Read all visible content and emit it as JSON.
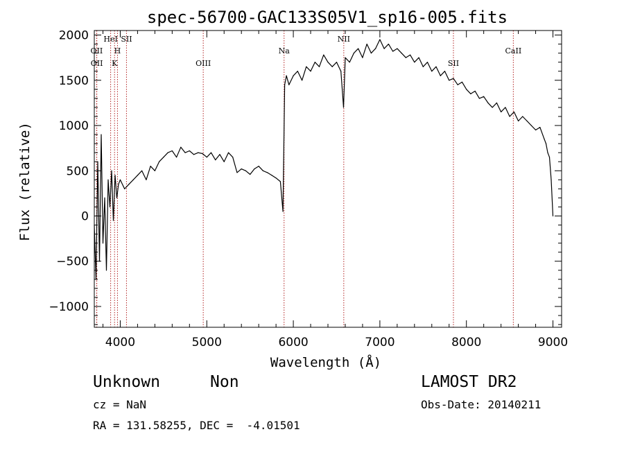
{
  "chart_data": {
    "type": "line",
    "title": "spec-56700-GAC133S05V1_sp16-005.fits",
    "xlabel": "Wavelength (Å)",
    "ylabel": "Flux (relative)",
    "xlim": [
      3700,
      9100
    ],
    "ylim": [
      -1230,
      2050
    ],
    "xticks": [
      4000,
      5000,
      6000,
      7000,
      8000,
      9000
    ],
    "yticks": [
      -1000,
      -500,
      0,
      500,
      1000,
      1500,
      2000
    ],
    "grid": false,
    "line_color": "#000000",
    "marker_color": "#b22222",
    "lines": [
      {
        "label": "OII",
        "wavelength": 3727,
        "row": 0
      },
      {
        "label": "OII",
        "wavelength": 3729,
        "row": 1
      },
      {
        "label": "HeI",
        "wavelength": 3889,
        "row": -1
      },
      {
        "label": "H",
        "wavelength": 3968,
        "row": 0
      },
      {
        "label": "K",
        "wavelength": 3934,
        "row": 1
      },
      {
        "label": "SII",
        "wavelength": 4072,
        "row": -1
      },
      {
        "label": "OIII",
        "wavelength": 4959,
        "row": 1
      },
      {
        "label": "Na",
        "wavelength": 5893,
        "row": 0
      },
      {
        "label": "NII",
        "wavelength": 6583,
        "row": -1
      },
      {
        "label": "SII",
        "wavelength": 7850,
        "row": 1
      },
      {
        "label": "CaII",
        "wavelength": 8542,
        "row": 0
      }
    ],
    "series": [
      {
        "x": [
          3700,
          3720,
          3740,
          3760,
          3780,
          3800,
          3820,
          3840,
          3860,
          3880,
          3900,
          3920,
          3940,
          3960,
          3980,
          4000,
          4050,
          4100,
          4150,
          4200,
          4250,
          4300,
          4350,
          4400,
          4450,
          4500,
          4550,
          4600,
          4650,
          4700,
          4750,
          4800,
          4850,
          4900,
          4950,
          5000,
          5050,
          5100,
          5150,
          5200,
          5250,
          5300,
          5350,
          5400,
          5450,
          5500,
          5550,
          5600,
          5650,
          5700,
          5750,
          5800,
          5850,
          5880,
          5900,
          5920,
          5950,
          6000,
          6050,
          6100,
          6150,
          6200,
          6250,
          6300,
          6350,
          6400,
          6450,
          6500,
          6550,
          6580,
          6600,
          6650,
          6700,
          6750,
          6800,
          6850,
          6900,
          6950,
          7000,
          7050,
          7100,
          7150,
          7200,
          7250,
          7300,
          7350,
          7400,
          7450,
          7500,
          7550,
          7600,
          7650,
          7700,
          7750,
          7800,
          7850,
          7900,
          7950,
          8000,
          8050,
          8100,
          8150,
          8200,
          8250,
          8300,
          8350,
          8400,
          8450,
          8500,
          8550,
          8600,
          8650,
          8700,
          8750,
          8800,
          8850,
          8900,
          8920,
          8940,
          8960,
          8980,
          9000
        ],
        "y": [
          -100,
          -700,
          600,
          -500,
          900,
          -300,
          200,
          -600,
          400,
          100,
          500,
          -50,
          450,
          200,
          350,
          400,
          300,
          350,
          400,
          450,
          500,
          400,
          550,
          500,
          600,
          650,
          700,
          720,
          650,
          760,
          700,
          720,
          680,
          700,
          690,
          650,
          700,
          620,
          680,
          600,
          700,
          650,
          480,
          520,
          500,
          460,
          520,
          550,
          500,
          480,
          450,
          420,
          380,
          50,
          1450,
          1550,
          1450,
          1550,
          1600,
          1500,
          1650,
          1600,
          1700,
          1650,
          1780,
          1700,
          1650,
          1700,
          1600,
          1200,
          1750,
          1700,
          1800,
          1850,
          1750,
          1900,
          1800,
          1850,
          1950,
          1850,
          1900,
          1820,
          1850,
          1800,
          1750,
          1780,
          1700,
          1750,
          1650,
          1700,
          1600,
          1650,
          1550,
          1600,
          1500,
          1520,
          1450,
          1480,
          1400,
          1350,
          1380,
          1300,
          1320,
          1250,
          1200,
          1250,
          1150,
          1200,
          1100,
          1150,
          1050,
          1100,
          1050,
          1000,
          950,
          980,
          850,
          800,
          700,
          650,
          400,
          0
        ]
      }
    ]
  },
  "info": {
    "object_class": "Unknown",
    "object_subclass": "Non",
    "survey": "LAMOST DR2",
    "cz": "cz = NaN",
    "obs_date": "Obs-Date: 20140211",
    "coords": "RA = 131.58255, DEC =  -4.01501"
  }
}
